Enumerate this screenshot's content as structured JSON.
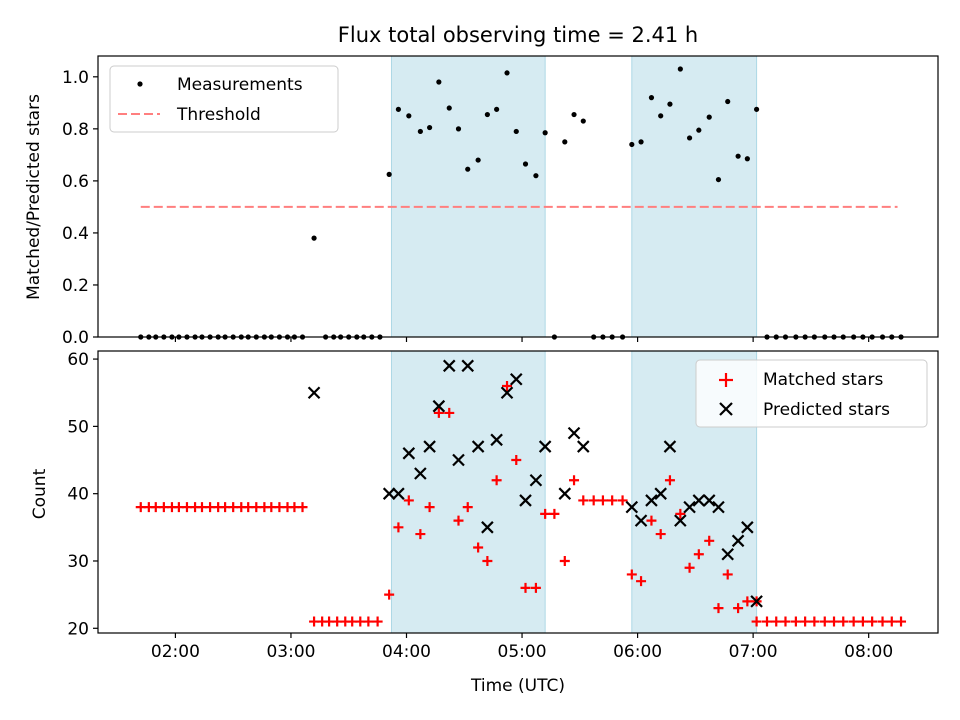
{
  "chart_data": [
    {
      "type": "scatter",
      "title": "Flux total observing time = 2.41 h",
      "xlabel": "",
      "ylabel": "Matched/Predicted stars",
      "xlim": [
        1.33,
        8.6
      ],
      "ylim": [
        0,
        1.08
      ],
      "yticks": [
        0.0,
        0.2,
        0.4,
        0.6,
        0.8,
        1.0
      ],
      "ytick_labels": [
        "0.0",
        "0.2",
        "0.4",
        "0.6",
        "0.8",
        "1.0"
      ],
      "grid": false,
      "legend": "upper-left",
      "legend_entries": [
        "Measurements",
        "Threshold"
      ],
      "shaded_intervals": [
        [
          3.87,
          5.2
        ],
        [
          5.95,
          7.03
        ]
      ],
      "threshold": {
        "name": "Threshold",
        "y": 0.5,
        "x_range": [
          1.7,
          8.25
        ],
        "color": "#ff7f7f"
      },
      "series": [
        {
          "name": "Measurements",
          "marker": "dot",
          "color": "#000000",
          "points": [
            [
              1.7,
              0
            ],
            [
              1.77,
              0
            ],
            [
              1.83,
              0
            ],
            [
              1.9,
              0
            ],
            [
              1.97,
              0
            ],
            [
              2.03,
              0
            ],
            [
              2.1,
              0
            ],
            [
              2.17,
              0
            ],
            [
              2.23,
              0
            ],
            [
              2.3,
              0
            ],
            [
              2.37,
              0
            ],
            [
              2.43,
              0
            ],
            [
              2.5,
              0
            ],
            [
              2.57,
              0
            ],
            [
              2.63,
              0
            ],
            [
              2.7,
              0
            ],
            [
              2.77,
              0
            ],
            [
              2.83,
              0
            ],
            [
              2.9,
              0
            ],
            [
              2.97,
              0
            ],
            [
              3.03,
              0
            ],
            [
              3.1,
              0
            ],
            [
              3.2,
              0.38
            ],
            [
              3.3,
              0
            ],
            [
              3.37,
              0
            ],
            [
              3.43,
              0
            ],
            [
              3.5,
              0
            ],
            [
              3.57,
              0
            ],
            [
              3.63,
              0
            ],
            [
              3.7,
              0
            ],
            [
              3.77,
              0
            ],
            [
              3.85,
              0.625
            ],
            [
              3.93,
              0.875
            ],
            [
              4.02,
              0.85
            ],
            [
              4.12,
              0.79
            ],
            [
              4.2,
              0.805
            ],
            [
              4.28,
              0.98
            ],
            [
              4.37,
              0.88
            ],
            [
              4.45,
              0.8
            ],
            [
              4.53,
              0.645
            ],
            [
              4.62,
              0.68
            ],
            [
              4.7,
              0.855
            ],
            [
              4.78,
              0.875
            ],
            [
              4.87,
              1.015
            ],
            [
              4.95,
              0.79
            ],
            [
              5.03,
              0.665
            ],
            [
              5.12,
              0.62
            ],
            [
              5.2,
              0.785
            ],
            [
              5.28,
              0
            ],
            [
              5.37,
              0.75
            ],
            [
              5.45,
              0.855
            ],
            [
              5.53,
              0.83
            ],
            [
              5.62,
              0
            ],
            [
              5.7,
              0
            ],
            [
              5.78,
              0
            ],
            [
              5.87,
              0
            ],
            [
              5.95,
              0.74
            ],
            [
              6.03,
              0.75
            ],
            [
              6.12,
              0.92
            ],
            [
              6.2,
              0.85
            ],
            [
              6.28,
              0.895
            ],
            [
              6.37,
              1.03
            ],
            [
              6.45,
              0.765
            ],
            [
              6.53,
              0.795
            ],
            [
              6.62,
              0.845
            ],
            [
              6.7,
              0.605
            ],
            [
              6.78,
              0.905
            ],
            [
              6.87,
              0.695
            ],
            [
              6.95,
              0.685
            ],
            [
              7.03,
              0.875
            ],
            [
              7.12,
              0
            ],
            [
              7.2,
              0
            ],
            [
              7.28,
              0
            ],
            [
              7.37,
              0
            ],
            [
              7.45,
              0
            ],
            [
              7.53,
              0
            ],
            [
              7.62,
              0
            ],
            [
              7.7,
              0
            ],
            [
              7.78,
              0
            ],
            [
              7.87,
              0
            ],
            [
              7.95,
              0
            ],
            [
              8.03,
              0
            ],
            [
              8.12,
              0
            ],
            [
              8.2,
              0
            ],
            [
              8.28,
              0
            ]
          ]
        }
      ]
    },
    {
      "type": "scatter",
      "title": "",
      "xlabel": "Time (UTC)",
      "ylabel": "Count",
      "xlim": [
        1.33,
        8.6
      ],
      "ylim": [
        19.3,
        61.2
      ],
      "yticks": [
        20,
        30,
        40,
        50,
        60
      ],
      "ytick_labels": [
        "20",
        "30",
        "40",
        "50",
        "60"
      ],
      "xticks": [
        2,
        3,
        4,
        5,
        6,
        7,
        8
      ],
      "xtick_labels": [
        "02:00",
        "03:00",
        "04:00",
        "05:00",
        "06:00",
        "07:00",
        "08:00"
      ],
      "grid": false,
      "legend": "upper-right",
      "legend_entries": [
        "Matched stars",
        "Predicted stars"
      ],
      "shaded_intervals": [
        [
          3.87,
          5.2
        ],
        [
          5.95,
          7.03
        ]
      ],
      "series": [
        {
          "name": "Matched stars",
          "marker": "plus",
          "color": "#ff0000",
          "points": [
            [
              1.7,
              38
            ],
            [
              1.77,
              38
            ],
            [
              1.83,
              38
            ],
            [
              1.9,
              38
            ],
            [
              1.97,
              38
            ],
            [
              2.03,
              38
            ],
            [
              2.1,
              38
            ],
            [
              2.17,
              38
            ],
            [
              2.23,
              38
            ],
            [
              2.3,
              38
            ],
            [
              2.37,
              38
            ],
            [
              2.43,
              38
            ],
            [
              2.5,
              38
            ],
            [
              2.57,
              38
            ],
            [
              2.63,
              38
            ],
            [
              2.7,
              38
            ],
            [
              2.77,
              38
            ],
            [
              2.83,
              38
            ],
            [
              2.9,
              38
            ],
            [
              2.97,
              38
            ],
            [
              3.03,
              38
            ],
            [
              3.1,
              38
            ],
            [
              3.2,
              21
            ],
            [
              3.27,
              21
            ],
            [
              3.33,
              21
            ],
            [
              3.4,
              21
            ],
            [
              3.47,
              21
            ],
            [
              3.53,
              21
            ],
            [
              3.6,
              21
            ],
            [
              3.67,
              21
            ],
            [
              3.75,
              21
            ],
            [
              3.85,
              25
            ],
            [
              3.93,
              35
            ],
            [
              4.02,
              39
            ],
            [
              4.12,
              34
            ],
            [
              4.2,
              38
            ],
            [
              4.28,
              52
            ],
            [
              4.37,
              52
            ],
            [
              4.45,
              36
            ],
            [
              4.53,
              38
            ],
            [
              4.62,
              32
            ],
            [
              4.7,
              30
            ],
            [
              4.78,
              42
            ],
            [
              4.87,
              56
            ],
            [
              4.95,
              45
            ],
            [
              5.03,
              26
            ],
            [
              5.12,
              26
            ],
            [
              5.2,
              37
            ],
            [
              5.28,
              37
            ],
            [
              5.37,
              30
            ],
            [
              5.45,
              42
            ],
            [
              5.53,
              39
            ],
            [
              5.62,
              39
            ],
            [
              5.7,
              39
            ],
            [
              5.78,
              39
            ],
            [
              5.87,
              39
            ],
            [
              5.95,
              28
            ],
            [
              6.03,
              27
            ],
            [
              6.12,
              36
            ],
            [
              6.2,
              34
            ],
            [
              6.28,
              42
            ],
            [
              6.37,
              37
            ],
            [
              6.45,
              29
            ],
            [
              6.53,
              31
            ],
            [
              6.62,
              33
            ],
            [
              6.7,
              23
            ],
            [
              6.78,
              28
            ],
            [
              6.87,
              23
            ],
            [
              6.95,
              24
            ],
            [
              7.03,
              24
            ],
            [
              7.03,
              21
            ],
            [
              7.12,
              21
            ],
            [
              7.2,
              21
            ],
            [
              7.28,
              21
            ],
            [
              7.37,
              21
            ],
            [
              7.45,
              21
            ],
            [
              7.53,
              21
            ],
            [
              7.62,
              21
            ],
            [
              7.7,
              21
            ],
            [
              7.78,
              21
            ],
            [
              7.87,
              21
            ],
            [
              7.95,
              21
            ],
            [
              8.03,
              21
            ],
            [
              8.12,
              21
            ],
            [
              8.2,
              21
            ],
            [
              8.28,
              21
            ]
          ]
        },
        {
          "name": "Predicted stars",
          "marker": "x",
          "color": "#000000",
          "points": [
            [
              3.2,
              55
            ],
            [
              3.85,
              40
            ],
            [
              3.93,
              40
            ],
            [
              4.02,
              46
            ],
            [
              4.12,
              43
            ],
            [
              4.2,
              47
            ],
            [
              4.28,
              53
            ],
            [
              4.37,
              59
            ],
            [
              4.45,
              45
            ],
            [
              4.53,
              59
            ],
            [
              4.62,
              47
            ],
            [
              4.7,
              35
            ],
            [
              4.78,
              48
            ],
            [
              4.87,
              55
            ],
            [
              4.95,
              57
            ],
            [
              5.03,
              39
            ],
            [
              5.12,
              42
            ],
            [
              5.2,
              47
            ],
            [
              5.37,
              40
            ],
            [
              5.45,
              49
            ],
            [
              5.53,
              47
            ],
            [
              5.95,
              38
            ],
            [
              6.03,
              36
            ],
            [
              6.12,
              39
            ],
            [
              6.2,
              40
            ],
            [
              6.28,
              47
            ],
            [
              6.37,
              36
            ],
            [
              6.45,
              38
            ],
            [
              6.53,
              39
            ],
            [
              6.62,
              39
            ],
            [
              6.7,
              38
            ],
            [
              6.78,
              31
            ],
            [
              6.87,
              33
            ],
            [
              6.95,
              35
            ],
            [
              7.03,
              24
            ]
          ]
        }
      ]
    }
  ]
}
